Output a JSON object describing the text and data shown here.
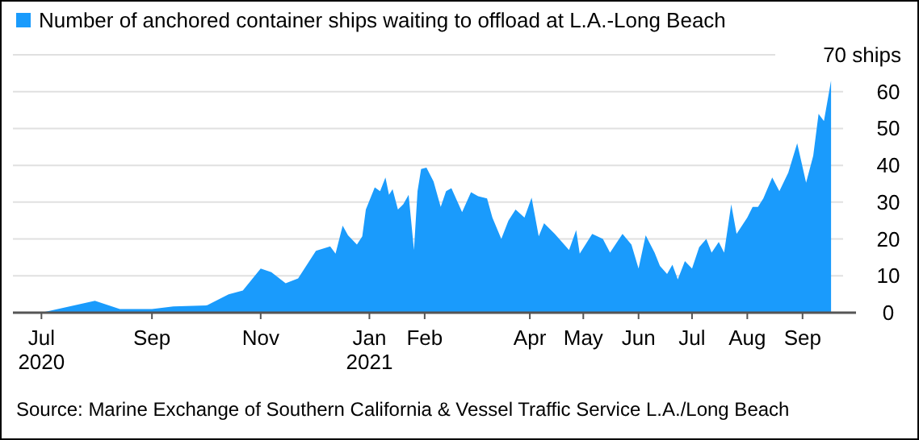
{
  "chart_data": {
    "type": "area",
    "legend": "top left",
    "grid": "y",
    "x": [
      "2020-06-17",
      "2020-07-01",
      "2020-07-31",
      "2020-08-14",
      "2020-09-01",
      "2020-09-13",
      "2020-10-02",
      "2020-10-14",
      "2020-10-22",
      "2020-11-01",
      "2020-11-07",
      "2020-11-15",
      "2020-11-22",
      "2020-12-02",
      "2020-12-10",
      "2020-12-13",
      "2020-12-17",
      "2020-12-20",
      "2020-12-25",
      "2020-12-28",
      "2020-12-30",
      "2021-01-02",
      "2021-01-04",
      "2021-01-07",
      "2021-01-10",
      "2021-01-12",
      "2021-01-14",
      "2021-01-17",
      "2021-01-20",
      "2021-01-23",
      "2021-01-26",
      "2021-01-28",
      "2021-01-30",
      "2021-02-02",
      "2021-02-06",
      "2021-02-10",
      "2021-02-13",
      "2021-02-16",
      "2021-02-22",
      "2021-02-27",
      "2021-03-03",
      "2021-03-08",
      "2021-03-11",
      "2021-03-16",
      "2021-03-20",
      "2021-03-24",
      "2021-03-29",
      "2021-04-02",
      "2021-04-06",
      "2021-04-09",
      "2021-04-15",
      "2021-04-19",
      "2021-04-23",
      "2021-04-27",
      "2021-04-29",
      "2021-05-06",
      "2021-05-12",
      "2021-05-16",
      "2021-05-23",
      "2021-05-28",
      "2021-06-01",
      "2021-06-05",
      "2021-06-10",
      "2021-06-13",
      "2021-06-17",
      "2021-06-20",
      "2021-06-23",
      "2021-06-27",
      "2021-07-01",
      "2021-07-05",
      "2021-07-09",
      "2021-07-12",
      "2021-07-16",
      "2021-07-19",
      "2021-07-23",
      "2021-07-26",
      "2021-08-01",
      "2021-08-04",
      "2021-08-07",
      "2021-08-10",
      "2021-08-15",
      "2021-08-19",
      "2021-08-24",
      "2021-08-29",
      "2021-09-03",
      "2021-09-07",
      "2021-09-10",
      "2021-09-13",
      "2021-09-17"
    ],
    "series": [
      {
        "name": "Number of anchored container ships waiting to offload at L.A.-Long Beach",
        "color": "#1a9bfc",
        "values": [
          0,
          0,
          3.2,
          1,
          1,
          1.7,
          2,
          5,
          6,
          12,
          11,
          8,
          9.3,
          16.8,
          18,
          16,
          23.6,
          21,
          18.5,
          20.7,
          28,
          31.6,
          34,
          33,
          36.7,
          32,
          33.5,
          28,
          29.4,
          32,
          17,
          33,
          39,
          39.4,
          35.6,
          28.7,
          33,
          33.8,
          27.3,
          32.7,
          31.6,
          31,
          25.8,
          20,
          25,
          28,
          25.8,
          31.2,
          20.7,
          24.3,
          21.4,
          19.2,
          17,
          22.4,
          16,
          21.4,
          20,
          16.3,
          21.4,
          18.5,
          12,
          21,
          16.3,
          12.7,
          10.5,
          13,
          9,
          14,
          12,
          17.8,
          20,
          16.3,
          19.2,
          16.3,
          29.4,
          21.4,
          25.8,
          28.7,
          28.7,
          31,
          36.7,
          33,
          38,
          46,
          35.3,
          42.6,
          54,
          52,
          63
        ]
      }
    ],
    "xlim": [
      "2020-06-15",
      "2021-10-01"
    ],
    "xticks": [
      {
        "value": "2020-07-01",
        "label": "Jul\n2020"
      },
      {
        "value": "2020-09-01",
        "label": "Sep"
      },
      {
        "value": "2020-11-01",
        "label": "Nov"
      },
      {
        "value": "2021-01-01",
        "label": "Jan\n2021"
      },
      {
        "value": "2021-02-01",
        "label": "Feb"
      },
      {
        "value": "2021-04-01",
        "label": "Apr"
      },
      {
        "value": "2021-05-01",
        "label": "May"
      },
      {
        "value": "2021-06-01",
        "label": "Jun"
      },
      {
        "value": "2021-07-01",
        "label": "Jul"
      },
      {
        "value": "2021-08-01",
        "label": "Aug"
      },
      {
        "value": "2021-09-01",
        "label": "Sep"
      }
    ],
    "ylim": [
      0,
      70
    ],
    "yticks": [
      0,
      10,
      20,
      30,
      40,
      50,
      60,
      {
        "value": 70,
        "label": "70 ships"
      }
    ],
    "annotations": [
      "Source: Marine Exchange of Southern California & Vessel Traffic Service L.A./Long Beach"
    ]
  }
}
